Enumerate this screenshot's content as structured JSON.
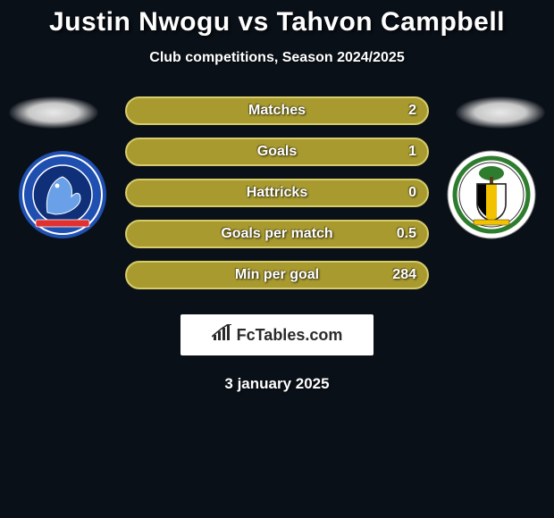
{
  "title": {
    "text": "Justin Nwogu vs Tahvon Campbell",
    "fontsize": 30,
    "color": "#ffffff"
  },
  "subtitle": {
    "text": "Club competitions, Season 2024/2025",
    "fontsize": 16,
    "color": "#ffffff"
  },
  "background_color": "#0a1018",
  "bar_style": {
    "fill_color": "#a89a2f",
    "border_color": "#d6cc6a",
    "label_fontsize": 16,
    "value_fontsize": 16,
    "height": 32,
    "radius": 16
  },
  "stats": [
    {
      "label": "Matches",
      "value": "2"
    },
    {
      "label": "Goals",
      "value": "1"
    },
    {
      "label": "Hattricks",
      "value": "0"
    },
    {
      "label": "Goals per match",
      "value": "0.5"
    },
    {
      "label": "Min per goal",
      "value": "284"
    }
  ],
  "crest_left": {
    "name": "aldershot-town",
    "outer_color": "#1f4fb0",
    "inner_color": "#0f2f78",
    "accent_color": "#e03030"
  },
  "crest_right": {
    "name": "solihull-moors",
    "outer_color": "#ffffff",
    "ring_color": "#2e7d2e",
    "shield_stripe1": "#000000",
    "shield_stripe2": "#f2c200",
    "shield_stripe3": "#ffffff"
  },
  "branding": {
    "text": "FcTables.com",
    "fontsize": 18
  },
  "dateline": {
    "text": "3 january 2025",
    "fontsize": 17
  }
}
